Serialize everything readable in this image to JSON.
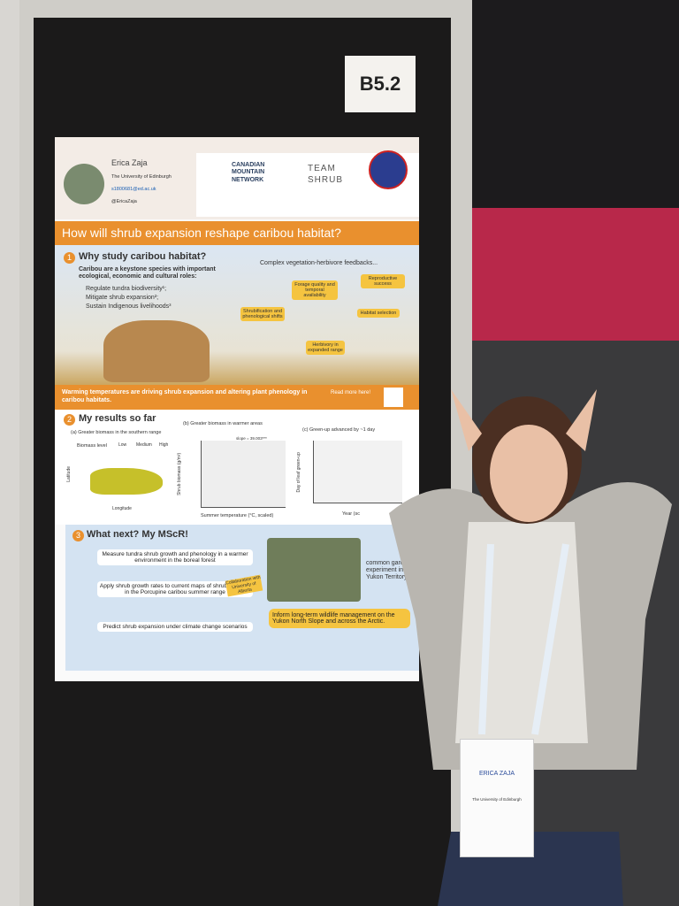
{
  "board_label": "B5.2",
  "poster": {
    "author": {
      "name": "Erica Zaja",
      "affiliation": "The University of Edinburgh",
      "email": "s1800681@ed.ac.uk",
      "handle": "@EricaZaja"
    },
    "logos": [
      "CANADIAN MOUNTAIN NETWORK",
      "TEAM SHRUB"
    ],
    "title": "How will shrub expansion reshape caribou habitat?",
    "section1": {
      "number": "1",
      "heading": "Why study caribou habitat?",
      "intro": "Caribou are a keystone species with important ecological, economic and cultural roles:",
      "bullets": [
        "Regulate tundra biodiversity¹;",
        "Mitigate shrub expansion²;",
        "Sustain Indigenous livelihoods³"
      ],
      "feedback_title": "Complex vegetation-herbivore feedbacks...",
      "feedback_boxes": [
        "Forage quality and temporal availability",
        "Reproductive success",
        "Shrubification and phenological shifts",
        "Habitat selection",
        "Herbivory in expanded range"
      ],
      "banner": "Warming temperatures are driving shrub expansion and altering plant phenology in caribou habitats.",
      "read_more": "Read more here!"
    },
    "section2": {
      "number": "2",
      "heading": "My results so far",
      "panel_a": {
        "caption": "(a) Greater biomass in the southern range",
        "legend_title": "Biomass level",
        "legend": [
          "Low",
          "Medium",
          "High"
        ],
        "y_label": "Latitude",
        "x_label": "Longitude"
      },
      "panel_b": {
        "caption": "(b) Greater biomass in warmer areas",
        "annotation": "slope = 39.003***",
        "y_label": "Shrub biomass (g/m²)",
        "x_label": "Summer temperature (°C, scaled)"
      },
      "panel_c": {
        "caption": "(c) Green-up advanced by ~1 day",
        "y_label": "Day of leaf green-up",
        "x_label": "Year (sc"
      }
    },
    "section3": {
      "number": "3",
      "heading": "What next? My MScR!",
      "steps": [
        "Measure tundra shrub growth and phenology in a warmer environment in the boreal forest",
        "Apply shrub growth rates to current maps of shrub biomass in the Porcupine caribou summer range",
        "Predict shrub expansion under climate change scenarios"
      ],
      "collaboration": "Collaboration with University of Alberta",
      "garden": "common garden experiment in the Yukon Territory",
      "inform": "Inform long-term wildlife management on the Yukon North Slope and across the Arctic."
    }
  },
  "badge": {
    "name": "ERICA ZAJA",
    "affiliation": "The University of Edinburgh"
  }
}
